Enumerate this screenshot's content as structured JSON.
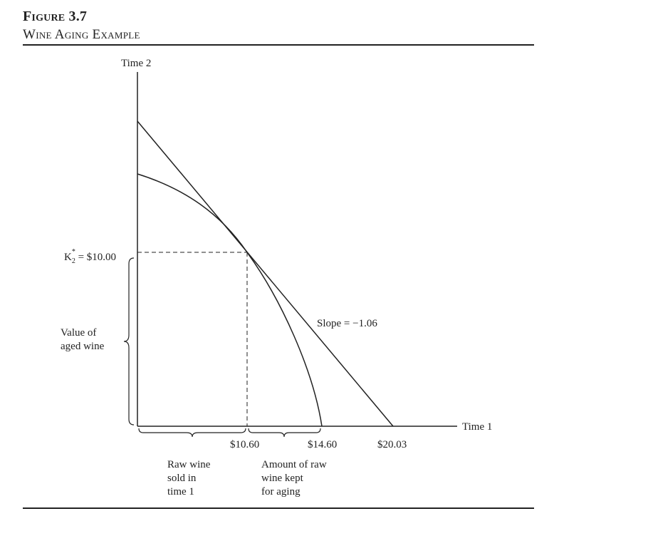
{
  "figure": {
    "number": "Figure 3.7",
    "title": "Wine Aging Example"
  },
  "axes": {
    "y_label": "Time 2",
    "x_label": "Time 1"
  },
  "annotations": {
    "k2_label": "K",
    "k2_subscript": "2",
    "k2_superscript": "*",
    "k2_value": " = $10.00",
    "slope_label": "Slope = −1.06",
    "value_aged_line1": "Value of",
    "value_aged_line2": "aged wine",
    "raw_sold_line1": "Raw wine",
    "raw_sold_line2": "sold in",
    "raw_sold_line3": "time 1",
    "kept_line1": "Amount of raw",
    "kept_line2": "wine kept",
    "kept_line3": "for aging"
  },
  "x_ticks": [
    "$10.60",
    "$14.60",
    "$20.03"
  ]
}
